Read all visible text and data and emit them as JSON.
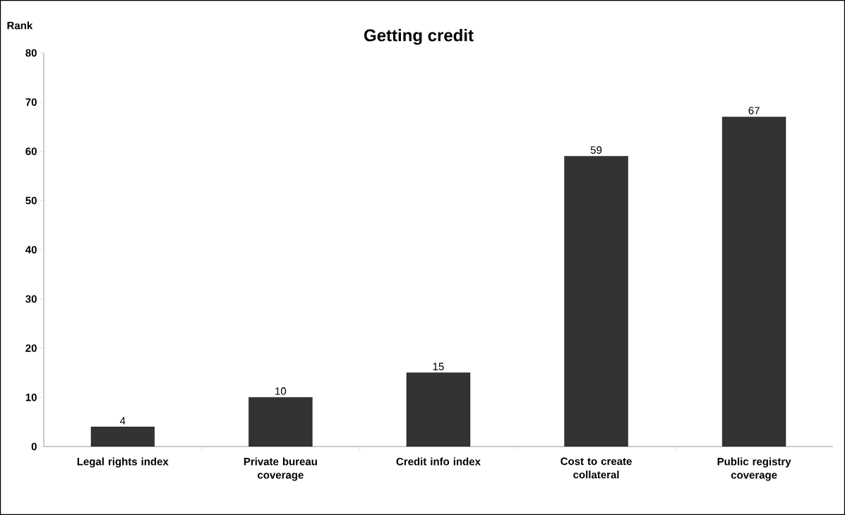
{
  "chart_data": {
    "type": "bar",
    "title": "Getting credit",
    "ylabel": "Rank",
    "categories": [
      "Legal rights index",
      "Private bureau coverage",
      "Credit info index",
      "Cost to create collateral",
      "Public registry coverage"
    ],
    "values": [
      4,
      10,
      15,
      59,
      67
    ],
    "color": "#333333",
    "ylim": [
      0,
      80
    ],
    "yticks": [
      0,
      10,
      20,
      30,
      40,
      50,
      60,
      70,
      80
    ],
    "data_labels": true
  }
}
